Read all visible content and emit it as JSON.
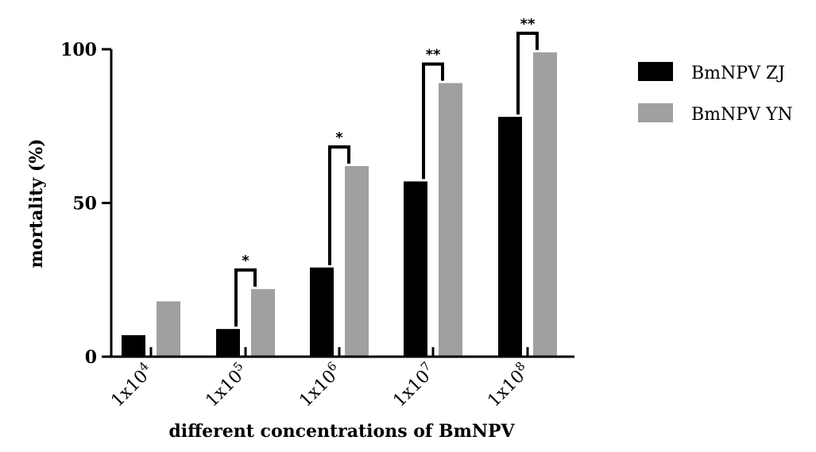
{
  "chart_data": {
    "type": "bar",
    "title": "",
    "xlabel": "different concentrations of BmNPV",
    "ylabel": "mortality (%)",
    "ylim": [
      0,
      100
    ],
    "yticks": [
      0,
      50,
      100
    ],
    "categories": [
      "1x10^4",
      "1x10^5",
      "1x10^6",
      "1x10^7",
      "1x10^8"
    ],
    "category_labels": [
      {
        "base": "1x10",
        "exp": "4"
      },
      {
        "base": "1x10",
        "exp": "5"
      },
      {
        "base": "1x10",
        "exp": "6"
      },
      {
        "base": "1x10",
        "exp": "7"
      },
      {
        "base": "1x10",
        "exp": "8"
      }
    ],
    "series": [
      {
        "name": "BmNPV ZJ",
        "color": "#000000",
        "values": [
          7,
          9,
          29,
          57,
          78
        ]
      },
      {
        "name": "BmNPV YN",
        "color": "#a0a0a1",
        "values": [
          18,
          22,
          62,
          89,
          99
        ]
      }
    ],
    "significance": [
      "",
      "*",
      "*",
      "**",
      "**"
    ],
    "legend": {
      "position": "right",
      "entries": [
        "BmNPV ZJ",
        "BmNPV YN"
      ]
    },
    "grid": false
  }
}
